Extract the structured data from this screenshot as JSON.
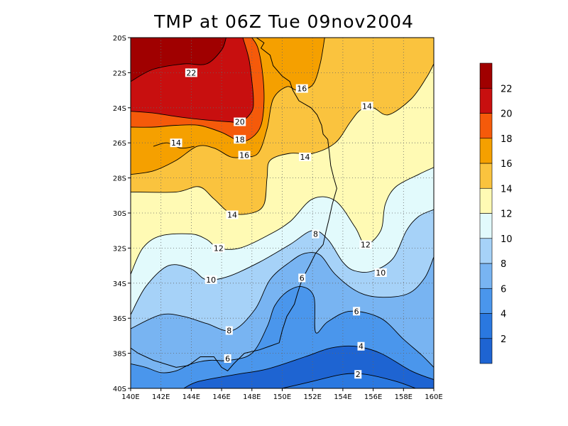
{
  "title": "TMP at 06Z Tue 09nov2004",
  "chart_data": {
    "type": "contour-map",
    "title": "TMP at 06Z Tue 09nov2004",
    "xlim": [
      140,
      160
    ],
    "ylim": [
      -40,
      -20
    ],
    "x_ticks": [
      {
        "value": 140,
        "label": "140E"
      },
      {
        "value": 142,
        "label": "142E"
      },
      {
        "value": 144,
        "label": "144E"
      },
      {
        "value": 146,
        "label": "146E"
      },
      {
        "value": 148,
        "label": "148E"
      },
      {
        "value": 150,
        "label": "150E"
      },
      {
        "value": 152,
        "label": "152E"
      },
      {
        "value": 154,
        "label": "154E"
      },
      {
        "value": 156,
        "label": "156E"
      },
      {
        "value": 158,
        "label": "158E"
      },
      {
        "value": 160,
        "label": "160E"
      }
    ],
    "y_ticks": [
      {
        "value": -20,
        "label": "20S"
      },
      {
        "value": -22,
        "label": "22S"
      },
      {
        "value": -24,
        "label": "24S"
      },
      {
        "value": -26,
        "label": "26S"
      },
      {
        "value": -28,
        "label": "28S"
      },
      {
        "value": -30,
        "label": "30S"
      },
      {
        "value": -32,
        "label": "32S"
      },
      {
        "value": -34,
        "label": "34S"
      },
      {
        "value": -36,
        "label": "36S"
      },
      {
        "value": -38,
        "label": "38S"
      },
      {
        "value": -40,
        "label": "40S"
      }
    ],
    "grid": true,
    "colorbar": {
      "position": "right",
      "range": [
        0,
        24
      ],
      "labels": [
        "2",
        "4",
        "6",
        "8",
        "10",
        "12",
        "14",
        "16",
        "18",
        "20",
        "22"
      ],
      "bands": [
        {
          "from": 0,
          "to": 2,
          "color": "#1e64d2"
        },
        {
          "from": 2,
          "to": 4,
          "color": "#2a78e0"
        },
        {
          "from": 4,
          "to": 6,
          "color": "#4a96ec"
        },
        {
          "from": 6,
          "to": 8,
          "color": "#78b4f2"
        },
        {
          "from": 8,
          "to": 10,
          "color": "#a6d2f8"
        },
        {
          "from": 10,
          "to": 12,
          "color": "#e2fafc"
        },
        {
          "from": 12,
          "to": 14,
          "color": "#fffab4"
        },
        {
          "from": 14,
          "to": 16,
          "color": "#fac33e"
        },
        {
          "from": 16,
          "to": 18,
          "color": "#f5a000"
        },
        {
          "from": 18,
          "to": 20,
          "color": "#f55a0a"
        },
        {
          "from": 20,
          "to": 22,
          "color": "#c80f0f"
        },
        {
          "from": 22,
          "to": 24,
          "color": "#a00000"
        }
      ]
    },
    "contours": [
      {
        "level": 22,
        "label": "22",
        "points": [
          [
            140,
            -22.5
          ],
          [
            141.5,
            -21.8
          ],
          [
            143.5,
            -21.5
          ],
          [
            145,
            -21.5
          ],
          [
            146,
            -20.7
          ],
          [
            146.3,
            -20
          ]
        ],
        "labels_at": [
          [
            144,
            -22
          ]
        ]
      },
      {
        "level": 20,
        "label": "20",
        "points": [
          [
            140,
            -24.2
          ],
          [
            141.5,
            -24.3
          ],
          [
            143,
            -24.5
          ],
          [
            145,
            -24.7
          ],
          [
            146.5,
            -24.8
          ],
          [
            147.3,
            -24.8
          ],
          [
            148,
            -24.2
          ],
          [
            148.1,
            -23.5
          ],
          [
            148,
            -22.5
          ],
          [
            147.8,
            -21.2
          ],
          [
            147.4,
            -20
          ]
        ],
        "labels_at": [
          [
            147.2,
            -24.8
          ]
        ]
      },
      {
        "level": 18,
        "label": "18",
        "points": [
          [
            140,
            -25.1
          ],
          [
            141.5,
            -25.1
          ],
          [
            143,
            -25.0
          ],
          [
            144.5,
            -25.0
          ],
          [
            146,
            -25.4
          ],
          [
            147.2,
            -25.9
          ],
          [
            148,
            -25.7
          ],
          [
            148.6,
            -25
          ],
          [
            148.8,
            -23.6
          ],
          [
            148.7,
            -22
          ],
          [
            148.4,
            -20.6
          ],
          [
            148,
            -20
          ]
        ],
        "labels_at": [
          [
            147.2,
            -25.8
          ]
        ]
      },
      {
        "level": 16,
        "label": "16",
        "points": [
          [
            140,
            -27.8
          ],
          [
            141.5,
            -27.6
          ],
          [
            143,
            -27
          ],
          [
            144.4,
            -26.2
          ],
          [
            145.5,
            -26.3
          ],
          [
            146.6,
            -26.8
          ],
          [
            147.4,
            -26.8
          ],
          [
            148.4,
            -26.6
          ],
          [
            149,
            -25.2
          ],
          [
            149.4,
            -23.5
          ],
          [
            150.3,
            -22.8
          ],
          [
            151,
            -23.0
          ],
          [
            152,
            -22.7
          ],
          [
            152.5,
            -21.5
          ],
          [
            152.8,
            -20
          ]
        ],
        "labels_at": [
          [
            147.5,
            -26.7
          ],
          [
            151.3,
            -22.9
          ]
        ]
      },
      {
        "level": 14,
        "label": "14",
        "points": [
          [
            140,
            -28.8
          ],
          [
            143,
            -28.8
          ],
          [
            144.5,
            -28.5
          ],
          [
            145.5,
            -29.2
          ],
          [
            146.6,
            -30
          ],
          [
            148,
            -30
          ],
          [
            148.8,
            -29.5
          ],
          [
            149,
            -28
          ],
          [
            149.2,
            -27
          ],
          [
            150.5,
            -26.6
          ],
          [
            152,
            -26.6
          ],
          [
            153.5,
            -26
          ],
          [
            154.5,
            -24.8
          ],
          [
            155.2,
            -24.1
          ],
          [
            156,
            -24
          ],
          [
            157,
            -24.4
          ],
          [
            158.5,
            -23.5
          ],
          [
            159.5,
            -22.3
          ],
          [
            160,
            -21.5
          ]
        ],
        "labels_at": [
          [
            146.7,
            -30.1
          ],
          [
            151.5,
            -26.8
          ],
          [
            155.6,
            -23.9
          ]
        ]
      },
      {
        "level": 14,
        "label": "14",
        "points": [
          [
            141.5,
            -26.2
          ],
          [
            142.4,
            -26.0
          ],
          [
            143.3,
            -26.3
          ],
          [
            144.2,
            -26.2
          ]
        ],
        "labels_at": [
          [
            143.0,
            -26.0
          ]
        ]
      },
      {
        "level": 12,
        "label": "12",
        "points": [
          [
            140,
            -33.5
          ],
          [
            140.8,
            -32
          ],
          [
            142,
            -31.3
          ],
          [
            144,
            -31.2
          ],
          [
            145,
            -31.5
          ],
          [
            145.8,
            -32
          ],
          [
            147.2,
            -32
          ],
          [
            149,
            -31.3
          ],
          [
            150.5,
            -30.5
          ],
          [
            152,
            -29.2
          ],
          [
            153.5,
            -29.3
          ],
          [
            154.8,
            -30.8
          ],
          [
            155.5,
            -31.8
          ],
          [
            156.5,
            -31
          ],
          [
            156.8,
            -29.5
          ],
          [
            157.5,
            -28.5
          ],
          [
            159,
            -27.8
          ],
          [
            160,
            -27.4
          ]
        ],
        "labels_at": [
          [
            145.8,
            -32.0
          ],
          [
            155.5,
            -31.8
          ]
        ]
      },
      {
        "level": 10,
        "label": "10",
        "points": [
          [
            140,
            -35.8
          ],
          [
            141,
            -34.2
          ],
          [
            142.5,
            -33.0
          ],
          [
            144,
            -33.2
          ],
          [
            145,
            -33.8
          ],
          [
            146.5,
            -33.6
          ],
          [
            148.5,
            -32.8
          ],
          [
            150.5,
            -31.8
          ],
          [
            152,
            -31.0
          ],
          [
            153,
            -31.5
          ],
          [
            154,
            -32.8
          ],
          [
            154.8,
            -33.3
          ],
          [
            156,
            -33.3
          ],
          [
            157.3,
            -32.6
          ],
          [
            158.2,
            -31
          ],
          [
            159,
            -30.2
          ],
          [
            160,
            -29.8
          ]
        ],
        "labels_at": [
          [
            145.3,
            -33.8
          ],
          [
            156.5,
            -33.4
          ]
        ]
      },
      {
        "level": 8,
        "label": "8",
        "points": [
          [
            140,
            -36.6
          ],
          [
            142,
            -35.8
          ],
          [
            143.5,
            -35.9
          ],
          [
            145,
            -36.3
          ],
          [
            146.7,
            -36.7
          ],
          [
            148.2,
            -35.5
          ],
          [
            149.2,
            -33.8
          ],
          [
            150.5,
            -32.8
          ],
          [
            151.5,
            -32.3
          ],
          [
            152.5,
            -32.4
          ],
          [
            153.5,
            -33.5
          ],
          [
            155,
            -34.5
          ],
          [
            156.5,
            -34.8
          ],
          [
            158.3,
            -34.6
          ],
          [
            159.4,
            -33.7
          ],
          [
            160,
            -32.5
          ]
        ],
        "labels_at": [
          [
            146.5,
            -36.7
          ],
          [
            152.2,
            -31.2
          ]
        ]
      },
      {
        "level": 6,
        "label": "6",
        "points": [
          [
            140,
            -38.6
          ],
          [
            141,
            -38.8
          ],
          [
            142,
            -39.1
          ],
          [
            143,
            -39.0
          ],
          [
            144,
            -38.6
          ],
          [
            145.2,
            -38.4
          ],
          [
            146.5,
            -38.4
          ],
          [
            148,
            -38.0
          ],
          [
            149,
            -36.5
          ],
          [
            149.5,
            -35.3
          ],
          [
            150.3,
            -34.5
          ],
          [
            151.3,
            -34.2
          ],
          [
            152.1,
            -34.8
          ],
          [
            152.2,
            -36.8
          ],
          [
            153,
            -36.2
          ],
          [
            154.5,
            -35.6
          ],
          [
            156.5,
            -36.0
          ],
          [
            158,
            -37.2
          ],
          [
            159.2,
            -38.1
          ],
          [
            160,
            -38.8
          ]
        ],
        "labels_at": [
          [
            146.4,
            -38.3
          ],
          [
            151.3,
            -33.7
          ],
          [
            154.9,
            -35.6
          ]
        ]
      },
      {
        "level": 4,
        "label": "4",
        "points": [
          [
            143.5,
            -40
          ],
          [
            144.5,
            -39.6
          ],
          [
            147,
            -39.2
          ],
          [
            149,
            -38.9
          ],
          [
            151.5,
            -38.2
          ],
          [
            153.2,
            -37.7
          ],
          [
            154.8,
            -37.6
          ],
          [
            156.5,
            -38.0
          ],
          [
            158.5,
            -39.0
          ],
          [
            160,
            -39.5
          ]
        ],
        "labels_at": [
          [
            155.2,
            -37.6
          ]
        ]
      },
      {
        "level": 2,
        "label": "2",
        "points": [
          [
            150,
            -40
          ],
          [
            152,
            -39.6
          ],
          [
            154,
            -39.2
          ],
          [
            155.5,
            -39.2
          ],
          [
            157.5,
            -39.6
          ],
          [
            158.8,
            -40
          ]
        ],
        "labels_at": [
          [
            155.0,
            -39.2
          ]
        ]
      }
    ],
    "coastline": [
      [
        [
          148.3,
          -20
        ],
        [
          148.8,
          -20.3
        ],
        [
          148.6,
          -20.6
        ],
        [
          149.2,
          -21.0
        ],
        [
          149.4,
          -21.6
        ],
        [
          150.0,
          -22.2
        ],
        [
          150.5,
          -22.5
        ],
        [
          150.7,
          -23.0
        ],
        [
          151.1,
          -23.6
        ],
        [
          151.9,
          -24.0
        ],
        [
          152.3,
          -24.4
        ],
        [
          152.6,
          -25.0
        ],
        [
          152.7,
          -25.5
        ],
        [
          153.0,
          -25.8
        ],
        [
          153.1,
          -26.5
        ],
        [
          153.2,
          -27.3
        ],
        [
          153.4,
          -28.0
        ],
        [
          153.6,
          -28.6
        ],
        [
          153.3,
          -29.5
        ],
        [
          153.1,
          -30.3
        ],
        [
          152.9,
          -31.0
        ],
        [
          152.7,
          -31.8
        ],
        [
          152.2,
          -32.3
        ],
        [
          151.8,
          -33.0
        ],
        [
          151.3,
          -33.8
        ],
        [
          151.0,
          -34.6
        ],
        [
          150.8,
          -35.2
        ],
        [
          150.3,
          -35.9
        ],
        [
          150.0,
          -36.7
        ],
        [
          149.8,
          -37.4
        ],
        [
          148.5,
          -37.8
        ],
        [
          147.5,
          -38.0
        ],
        [
          146.8,
          -38.6
        ],
        [
          146.4,
          -39.0
        ],
        [
          146.0,
          -38.8
        ],
        [
          145.5,
          -38.2
        ],
        [
          144.6,
          -38.2
        ],
        [
          143.8,
          -38.7
        ],
        [
          143.0,
          -38.8
        ],
        [
          141.5,
          -38.4
        ],
        [
          140.5,
          -38.0
        ],
        [
          140,
          -37.7
        ]
      ]
    ]
  }
}
